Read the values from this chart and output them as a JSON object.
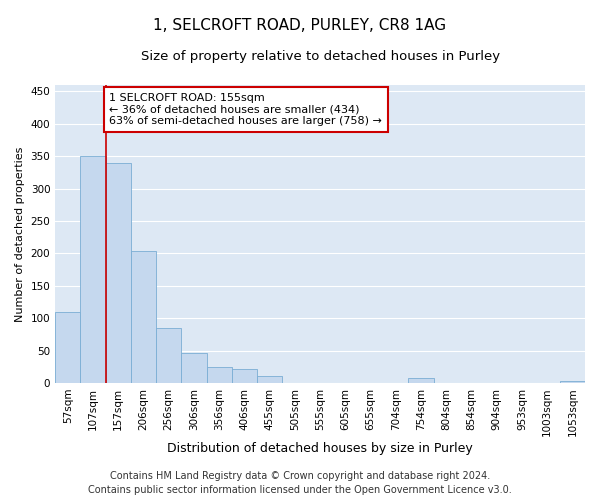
{
  "title_line1": "1, SELCROFT ROAD, PURLEY, CR8 1AG",
  "title_line2": "Size of property relative to detached houses in Purley",
  "xlabel": "Distribution of detached houses by size in Purley",
  "ylabel": "Number of detached properties",
  "bar_color": "#c5d8ee",
  "bar_edge_color": "#7aadd4",
  "background_color": "#dde8f4",
  "fig_background_color": "#ffffff",
  "grid_color": "#ffffff",
  "categories": [
    "57sqm",
    "107sqm",
    "157sqm",
    "206sqm",
    "256sqm",
    "306sqm",
    "356sqm",
    "406sqm",
    "455sqm",
    "505sqm",
    "555sqm",
    "605sqm",
    "655sqm",
    "704sqm",
    "754sqm",
    "804sqm",
    "854sqm",
    "904sqm",
    "953sqm",
    "1003sqm",
    "1053sqm"
  ],
  "values": [
    110,
    350,
    340,
    203,
    85,
    46,
    25,
    22,
    11,
    0,
    0,
    0,
    0,
    0,
    8,
    0,
    0,
    0,
    0,
    0,
    3
  ],
  "ylim": [
    0,
    460
  ],
  "yticks": [
    0,
    50,
    100,
    150,
    200,
    250,
    300,
    350,
    400,
    450
  ],
  "annotation_text": "1 SELCROFT ROAD: 155sqm\n← 36% of detached houses are smaller (434)\n63% of semi-detached houses are larger (758) →",
  "annotation_box_color": "#ffffff",
  "annotation_box_edge_color": "#cc0000",
  "vline_color": "#cc0000",
  "footer_line1": "Contains HM Land Registry data © Crown copyright and database right 2024.",
  "footer_line2": "Contains public sector information licensed under the Open Government Licence v3.0.",
  "title_fontsize": 11,
  "subtitle_fontsize": 9.5,
  "xlabel_fontsize": 9,
  "ylabel_fontsize": 8,
  "tick_fontsize": 7.5,
  "annotation_fontsize": 8,
  "footer_fontsize": 7
}
